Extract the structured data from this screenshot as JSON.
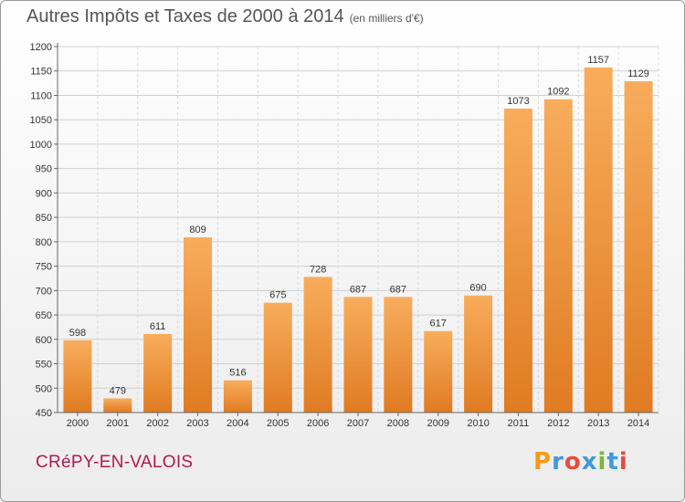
{
  "header": {
    "title": "Autres Impôts et Taxes de 2000 à 2014",
    "subtitle": "(en milliers d'€)"
  },
  "footer": {
    "commune": "CRéPY-EN-VALOIS",
    "logo": "Proxiti"
  },
  "colors": {
    "bar_light": "#f8ad5c",
    "bar_dark": "#e07b22",
    "commune": "#b21a4e",
    "logo_letters": [
      "#f39c12",
      "#3e9bd8",
      "#e74c3c",
      "#3e9bd8",
      "#7cb342",
      "#3e9bd8",
      "#e74c3c"
    ]
  },
  "chart_data": {
    "type": "bar",
    "title": "Autres Impôts et Taxes de 2000 à 2014",
    "subtitle": "(en milliers d'€)",
    "xlabel": "",
    "ylabel": "",
    "categories": [
      "2000",
      "2001",
      "2002",
      "2003",
      "2004",
      "2005",
      "2006",
      "2007",
      "2008",
      "2009",
      "2010",
      "2011",
      "2012",
      "2013",
      "2014"
    ],
    "values": [
      598,
      479,
      611,
      809,
      516,
      675,
      728,
      687,
      687,
      617,
      690,
      1073,
      1092,
      1157,
      1129
    ],
    "ylim": [
      450,
      1200
    ],
    "yticks": [
      450,
      500,
      550,
      600,
      650,
      700,
      750,
      800,
      850,
      900,
      950,
      1000,
      1050,
      1100,
      1150,
      1200
    ],
    "grid": true,
    "data_labels": true
  }
}
